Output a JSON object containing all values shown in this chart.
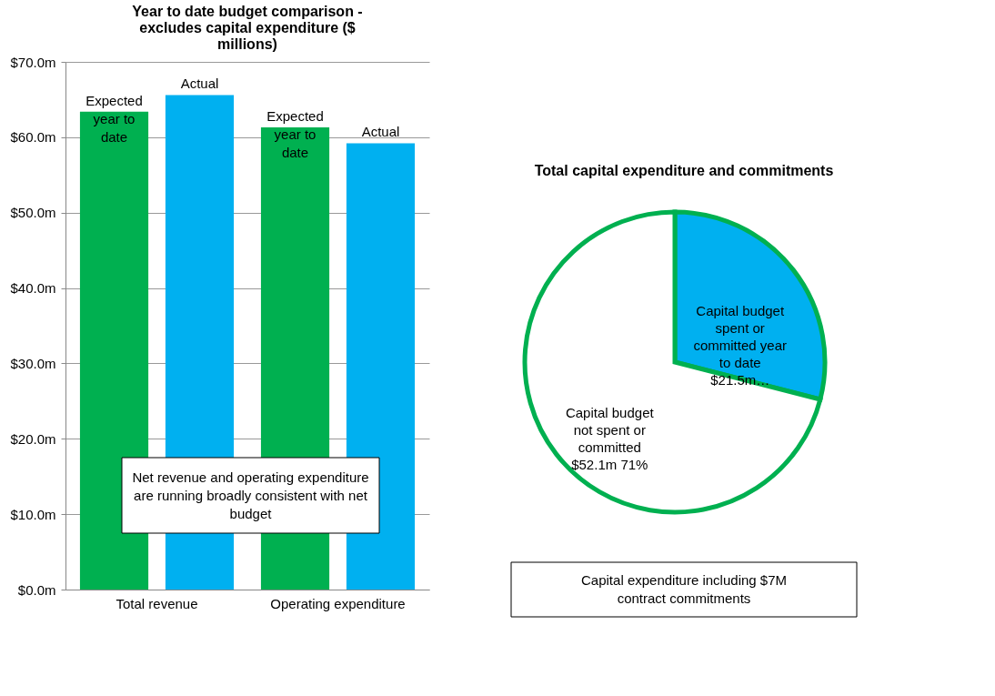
{
  "chart_data": [
    {
      "type": "bar",
      "title": "Year to date budget comparison - excludes capital expenditure ($ millions)",
      "categories": [
        "Total revenue",
        "Operating expenditure"
      ],
      "series": [
        {
          "name": "Expected year to date",
          "color": "#00b050",
          "values": [
            63.4,
            61.3
          ]
        },
        {
          "name": "Actual",
          "color": "#00b0f0",
          "values": [
            65.6,
            59.2
          ]
        }
      ],
      "ylim": [
        0,
        70
      ],
      "yticks": [
        {
          "value": 0,
          "label": "$0.0m"
        },
        {
          "value": 10,
          "label": "$10.0m"
        },
        {
          "value": 20,
          "label": "$20.0m"
        },
        {
          "value": 30,
          "label": "$30.0m"
        },
        {
          "value": 40,
          "label": "$40.0m"
        },
        {
          "value": 50,
          "label": "$50.0m"
        },
        {
          "value": 60,
          "label": "$60.0m"
        },
        {
          "value": 70,
          "label": "$70.0m"
        }
      ],
      "grid": "y",
      "legend": false,
      "annotations": [
        "Net revenue and operating expenditure are running broadly consistent with net budget"
      ]
    },
    {
      "type": "pie",
      "title": "Total capital expenditure and commitments",
      "categories": [
        "Capital budget spent or committed year to date $21.5m…",
        "Capital budget not spent or committed $52.1m 71%"
      ],
      "values": [
        29,
        71
      ],
      "colors": [
        "#00b0f0",
        "#ffffff"
      ],
      "legend": false,
      "annotations": [
        "Capital expenditure including $7M contract commitments"
      ]
    }
  ]
}
